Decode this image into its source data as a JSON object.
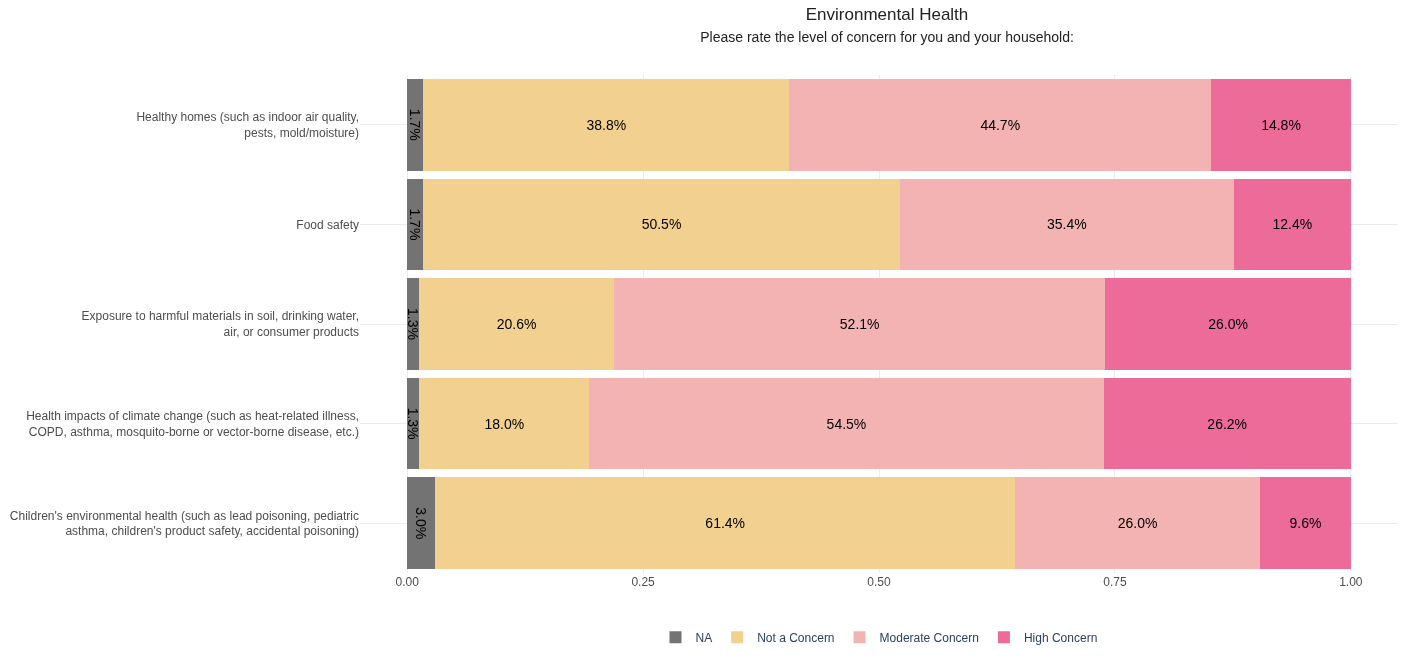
{
  "chart_data": {
    "type": "bar",
    "orientation": "horizontal",
    "stacked": true,
    "title": "Environmental Health",
    "subtitle": "Please rate the level of concern for you and your household:",
    "categories": [
      "Healthy homes (such as indoor air quality,\npests, mold/moisture)",
      "Food safety",
      "Exposure to harmful materials in soil, drinking water,\nair, or consumer products",
      "Health impacts of climate change (such as heat-related illness,\nCOPD, asthma, mosquito-borne or vector-borne disease, etc.)",
      "Children's environmental health (such as lead poisoning, pediatric\nasthma, children's product safety, accidental poisoning)"
    ],
    "series": [
      {
        "name": "NA",
        "color": "#737373",
        "values": [
          0.017,
          0.017,
          0.013,
          0.013,
          0.03
        ],
        "value_labels": [
          "1.7%",
          "1.7%",
          "1.3%",
          "1.3%",
          "3.0%"
        ]
      },
      {
        "name": "Not a Concern",
        "color": "#f2d08f",
        "values": [
          0.388,
          0.505,
          0.206,
          0.18,
          0.614
        ],
        "value_labels": [
          "38.8%",
          "50.5%",
          "20.6%",
          "18.0%",
          "61.4%"
        ]
      },
      {
        "name": "Moderate Concern",
        "color": "#f4b3b3",
        "values": [
          0.447,
          0.354,
          0.521,
          0.545,
          0.26
        ],
        "value_labels": [
          "44.7%",
          "35.4%",
          "52.1%",
          "54.5%",
          "26.0%"
        ]
      },
      {
        "name": "High Concern",
        "color": "#ec6b98",
        "values": [
          0.148,
          0.124,
          0.26,
          0.262,
          0.096
        ],
        "value_labels": [
          "14.8%",
          "12.4%",
          "26.0%",
          "26.2%",
          "9.6%"
        ]
      }
    ],
    "xlim": [
      -0.05,
      1.05
    ],
    "xticks": [
      {
        "value": 0,
        "label": "0.00"
      },
      {
        "value": 0.25,
        "label": "0.25"
      },
      {
        "value": 0.5,
        "label": "0.50"
      },
      {
        "value": 0.75,
        "label": "0.75"
      },
      {
        "value": 1,
        "label": "1.00"
      }
    ],
    "grid": true,
    "legend": "bottom"
  }
}
